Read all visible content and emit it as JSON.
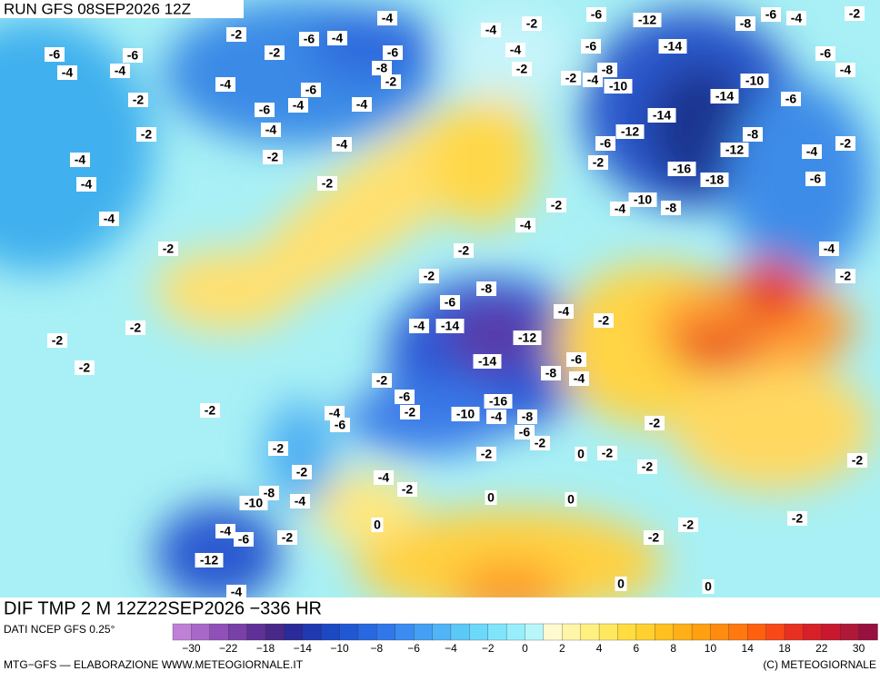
{
  "header": {
    "run": "RUN GFS 08SEP2026 12Z"
  },
  "footer": {
    "title": "DIF TMP 2 M 12Z22SEP2026 −336 HR",
    "source": "DATI NCEP GFS 0.25°",
    "credit": "MTG−GFS — ELABORAZIONE WWW.METEOGIORNALE.IT",
    "copyright": "(C) METEOGIORNALE"
  },
  "legend": {
    "colors": [
      "#c080d8",
      "#a868c8",
      "#9050b8",
      "#7840a8",
      "#603098",
      "#482888",
      "#2a2a9a",
      "#2038b0",
      "#1c48c4",
      "#2058d4",
      "#2868e0",
      "#3078ea",
      "#3a8cf0",
      "#44a0f4",
      "#50b4f6",
      "#5cc8f8",
      "#6cd8fa",
      "#80e4fa",
      "#98eefa",
      "#b8f6fa",
      "#fffad0",
      "#fff5a8",
      "#fff080",
      "#ffe860",
      "#ffdc40",
      "#ffd030",
      "#ffc020",
      "#ffb018",
      "#ffa010",
      "#ff8c10",
      "#ff7810",
      "#ff6010",
      "#f84818",
      "#e83020",
      "#d82028",
      "#c81830",
      "#b01838",
      "#981040"
    ],
    "labels": [
      "−30",
      "−22",
      "−18",
      "−14",
      "−10",
      "−8",
      "−6",
      "−4",
      "−2",
      "0",
      "2",
      "4",
      "6",
      "8",
      "10",
      "14",
      "18",
      "22",
      "30"
    ]
  },
  "contour_labels": [
    "-2",
    "-6",
    "-4",
    "-2",
    "-6",
    "-6",
    "-4",
    "-4",
    "-8",
    "-6",
    "-4",
    "-6",
    "-2",
    "-2",
    "-6",
    "-4",
    "-4",
    "-2",
    "-4",
    "-4",
    "-2",
    "-4",
    "-4",
    "-2",
    "-4",
    "-2",
    "-4",
    "-2",
    "-4",
    "-4",
    "-2",
    "-6",
    "-12",
    "-8",
    "-6",
    "-4",
    "-2",
    "-6",
    "-14",
    "-6",
    "-4",
    "-8",
    "-2",
    "-4",
    "-10",
    "-10",
    "-14",
    "-6",
    "-14",
    "-12",
    "-8",
    "-6",
    "-2",
    "-4",
    "-12",
    "-2",
    "-16",
    "-6",
    "-18",
    "-10",
    "-4",
    "-8",
    "-2",
    "-4",
    "-2",
    "-2",
    "-8",
    "-6",
    "-4",
    "-14",
    "-12",
    "-4",
    "-2",
    "-14",
    "-6",
    "-8",
    "-4",
    "-2",
    "-6",
    "-16",
    "-2",
    "-10",
    "-8",
    "-6",
    "-4",
    "-4",
    "-6",
    "-2",
    "-2",
    "-2",
    "0",
    "-2",
    "-2",
    "-2",
    "-2",
    "-4",
    "-2",
    "-2",
    "-2",
    "-4",
    "-2",
    "0",
    "0",
    "-4",
    "-8",
    "-10",
    "-2",
    "-2",
    "0",
    "-4",
    "-6",
    "-2",
    "-2",
    "-12",
    "-4",
    "0",
    "0",
    "-2",
    "-2",
    "-2"
  ]
}
